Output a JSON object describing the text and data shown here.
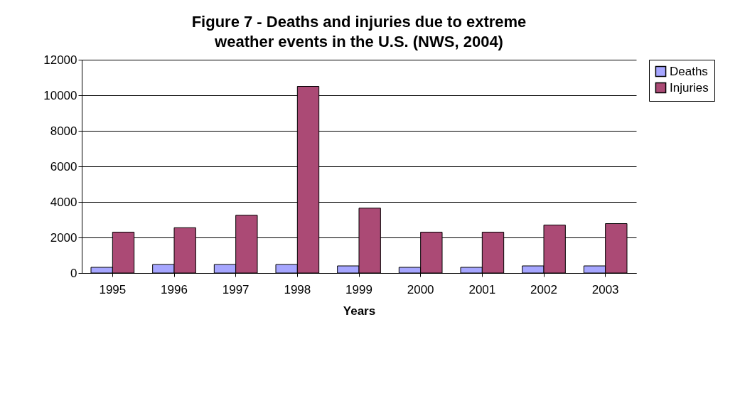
{
  "chart_data": {
    "type": "bar",
    "title": "Figure 7 - Deaths and injuries due to extreme weather events in the U.S. (NWS, 2004)",
    "xlabel": "Years",
    "categories": [
      "1995",
      "1996",
      "1997",
      "1998",
      "1999",
      "2000",
      "2001",
      "2002",
      "2003"
    ],
    "series": [
      {
        "name": "Deaths",
        "color": "#a6a6ff",
        "values": [
          320,
          480,
          480,
          480,
          400,
          320,
          320,
          400,
          400
        ]
      },
      {
        "name": "Injuries",
        "color": "#ab4a75",
        "values": [
          2300,
          2550,
          3250,
          10500,
          3650,
          2300,
          2300,
          2700,
          2780
        ]
      }
    ],
    "ylim": [
      0,
      12000
    ],
    "yticks": [
      0,
      2000,
      4000,
      6000,
      8000,
      10000,
      12000
    ],
    "grid": "y",
    "legend": "right"
  }
}
